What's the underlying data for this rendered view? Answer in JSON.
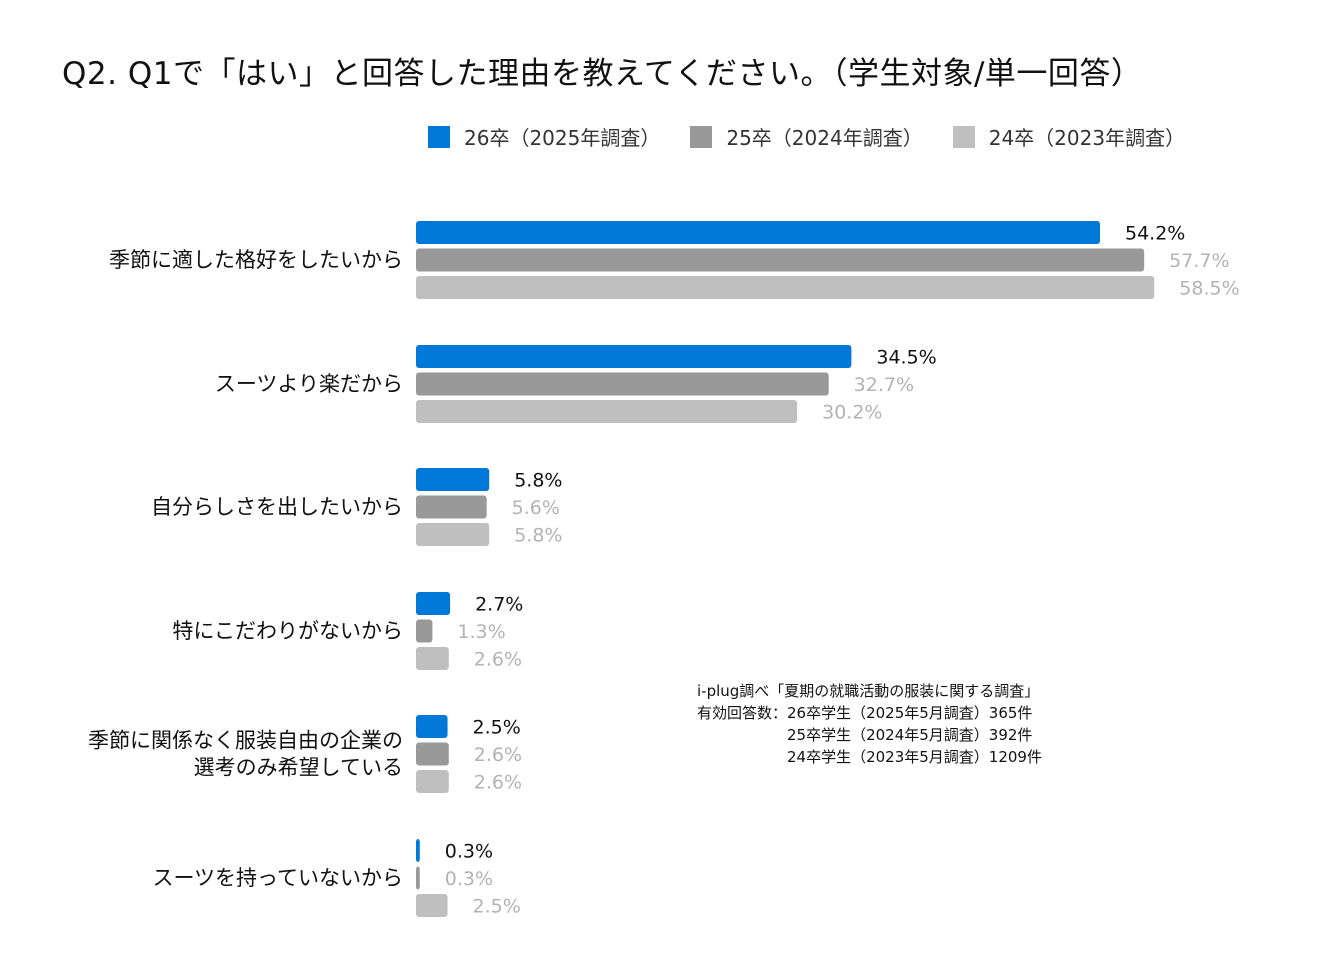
{
  "title": "Q2. Q1で「はい」と回答した理由を教えてください。（学生対象/単一回答）",
  "legend": [
    {
      "label": "26卒（2025年調査）",
      "color": "#0078d7"
    },
    {
      "label": "25卒（2024年調査）",
      "color": "#999999"
    },
    {
      "label": "24卒（2023年調査）",
      "color": "#bfbfbf"
    }
  ],
  "chart_data": {
    "type": "bar",
    "orientation": "horizontal",
    "title": "Q2. Q1で「はい」と回答した理由を教えてください。（学生対象/単一回答）",
    "categories": [
      [
        "季節に適した格好をしたいから"
      ],
      [
        "スーツより楽だから"
      ],
      [
        "自分らしさを出したいから"
      ],
      [
        "特にこだわりがないから"
      ],
      [
        "季節に関係なく服装自由の企業の",
        "選考のみ希望している"
      ],
      [
        "スーツを持っていないから"
      ]
    ],
    "series": [
      {
        "name": "26卒（2025年調査）",
        "color": "#0078d7",
        "label_color": "#111111",
        "values": [
          54.2,
          34.5,
          5.8,
          2.7,
          2.5,
          0.3
        ],
        "labels": [
          "54.2%",
          "34.5%",
          "5.8%",
          "2.7%",
          "2.5%",
          "0.3%"
        ]
      },
      {
        "name": "25卒（2024年調査）",
        "color": "#999999",
        "label_color": "#b3b3b3",
        "values": [
          57.7,
          32.7,
          5.6,
          1.3,
          2.6,
          0.3
        ],
        "labels": [
          "57.7%",
          "32.7%",
          "5.6%",
          "1.3%",
          "2.6%",
          "0.3%"
        ]
      },
      {
        "name": "24卒（2023年調査）",
        "color": "#bfbfbf",
        "label_color": "#b3b3b3",
        "values": [
          58.5,
          30.2,
          5.8,
          2.6,
          2.6,
          2.5
        ],
        "labels": [
          "58.5%",
          "30.2%",
          "5.8%",
          "2.6%",
          "2.6%",
          "2.5%"
        ]
      }
    ],
    "xlim": [
      0,
      100
    ],
    "grid": false,
    "legend_position": "top"
  },
  "source": {
    "line1": "i-plug調べ「夏期の就職活動の服装に関する調査」",
    "line2": "有効回答数：26卒学生（2025年5月調査）365件",
    "line3": "　　　　　　25卒学生（2024年5月調査）392件",
    "line4": "　　　　　　24卒学生（2023年5月調査）1209件"
  }
}
